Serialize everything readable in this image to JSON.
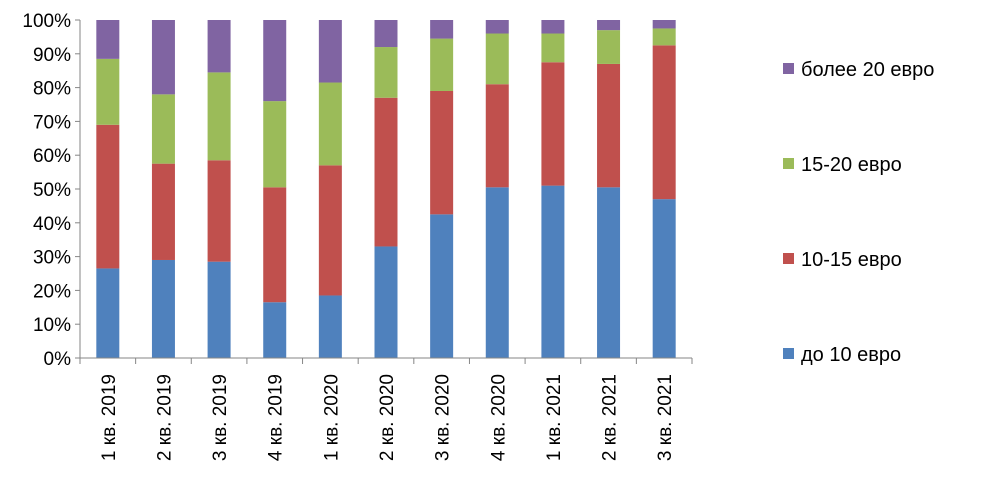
{
  "chart_data": {
    "type": "bar",
    "stacked": true,
    "percent": true,
    "categories": [
      "1 кв. 2019",
      "2 кв. 2019",
      "3 кв. 2019",
      "4 кв. 2019",
      "1 кв. 2020",
      "2 кв. 2020",
      "3 кв. 2020",
      "4 кв. 2020",
      "1 кв. 2021",
      "2 кв. 2021",
      "3 кв. 2021"
    ],
    "series": [
      {
        "name": "до 10 евро",
        "color": "#4F81BD",
        "values": [
          26.5,
          29,
          28.5,
          16.5,
          18.5,
          33,
          42.5,
          50.5,
          51,
          50.5,
          47
        ]
      },
      {
        "name": "10-15 евро",
        "color": "#C0504D",
        "values": [
          42.5,
          28.5,
          30,
          34,
          38.5,
          44,
          36.5,
          30.5,
          36.5,
          36.5,
          45.5
        ]
      },
      {
        "name": "15-20 евро",
        "color": "#9BBB59",
        "values": [
          19.5,
          20.5,
          26,
          25.5,
          24.5,
          15,
          15.5,
          15,
          8.5,
          10,
          5
        ]
      },
      {
        "name": "более 20 евро",
        "color": "#8064A2",
        "values": [
          11.5,
          22,
          15.5,
          24,
          18.5,
          8,
          5.5,
          4,
          4,
          3,
          2.5
        ]
      }
    ],
    "yticks": [
      "0%",
      "10%",
      "20%",
      "30%",
      "40%",
      "50%",
      "60%",
      "70%",
      "80%",
      "90%",
      "100%"
    ],
    "ylim": [
      0,
      100
    ],
    "legend_order": [
      "более 20 евро",
      "15-20 евро",
      "10-15 евро",
      "до 10 евро"
    ],
    "legend_position": "right",
    "grid": false
  }
}
